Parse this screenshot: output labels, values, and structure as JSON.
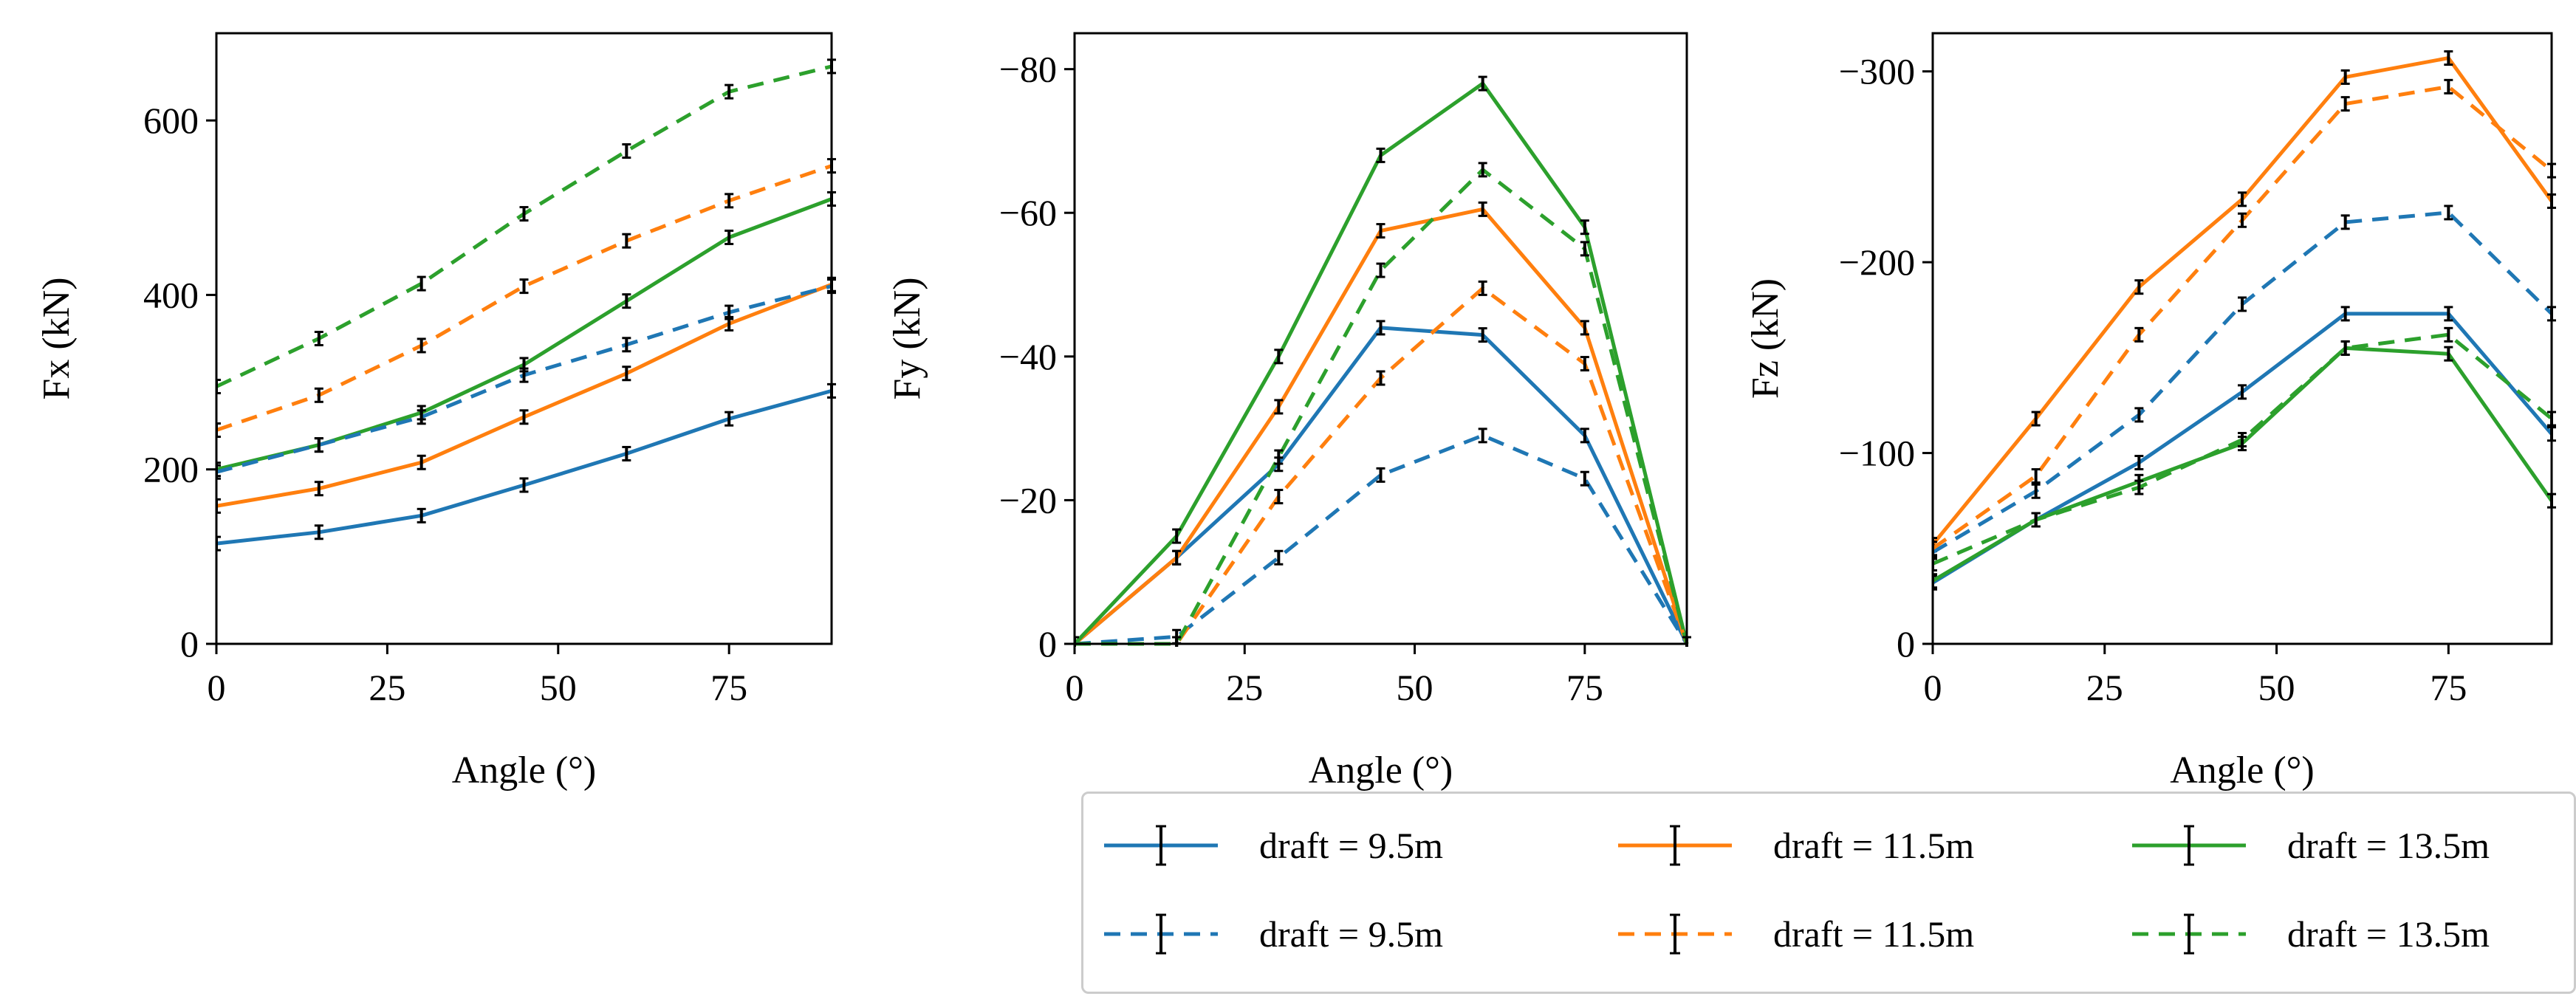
{
  "chart_data": [
    {
      "type": "line",
      "ylabel": "Fx (kN)",
      "xlabel": "Angle (°)",
      "xlim": [
        0,
        90
      ],
      "ylim": [
        0,
        700
      ],
      "xticks": [
        0,
        25,
        50,
        75
      ],
      "yticks": [
        0,
        200,
        400,
        600
      ],
      "inverted_y": false,
      "x": [
        0,
        15,
        30,
        45,
        60,
        75,
        90
      ],
      "series": [
        {
          "name": "draft = 9.5m",
          "style": "solid",
          "color": "#1f77b4",
          "values": [
            115,
            128,
            147,
            182,
            218,
            258,
            290
          ]
        },
        {
          "name": "draft = 11.5m",
          "style": "solid",
          "color": "#ff7f0e",
          "values": [
            158,
            178,
            208,
            260,
            310,
            367,
            412
          ]
        },
        {
          "name": "draft = 13.5m",
          "style": "solid",
          "color": "#2ca02c",
          "values": [
            200,
            228,
            265,
            320,
            393,
            466,
            510
          ]
        },
        {
          "name": "draft = 9.5m",
          "style": "dashed",
          "color": "#1f77b4",
          "values": [
            197,
            228,
            260,
            308,
            343,
            380,
            410
          ]
        },
        {
          "name": "draft = 11.5m",
          "style": "dashed",
          "color": "#ff7f0e",
          "values": [
            245,
            285,
            342,
            410,
            462,
            508,
            548
          ]
        },
        {
          "name": "draft = 13.5m",
          "style": "dashed",
          "color": "#2ca02c",
          "values": [
            295,
            350,
            413,
            493,
            565,
            633,
            662
          ]
        }
      ]
    },
    {
      "type": "line",
      "ylabel": "Fy (kN)",
      "xlabel": "Angle (°)",
      "xlim": [
        0,
        90
      ],
      "ylim": [
        0,
        -85
      ],
      "xticks": [
        0,
        25,
        50,
        75
      ],
      "yticks": [
        0,
        -20,
        -40,
        -60,
        -80
      ],
      "inverted_y": true,
      "x": [
        0,
        15,
        30,
        45,
        60,
        75,
        90
      ],
      "series": [
        {
          "name": "draft = 9.5m",
          "style": "solid",
          "color": "#1f77b4",
          "values": [
            0,
            -12,
            -25,
            -44,
            -43,
            -29,
            0
          ]
        },
        {
          "name": "draft = 11.5m",
          "style": "solid",
          "color": "#ff7f0e",
          "values": [
            0,
            -12,
            -33,
            -57.5,
            -60.5,
            -44,
            0
          ]
        },
        {
          "name": "draft = 13.5m",
          "style": "solid",
          "color": "#2ca02c",
          "values": [
            0,
            -15,
            -40,
            -68,
            -78,
            -58,
            0
          ]
        },
        {
          "name": "draft = 9.5m",
          "style": "dashed",
          "color": "#1f77b4",
          "values": [
            0,
            -1,
            -12,
            -23.5,
            -29,
            -23,
            0
          ]
        },
        {
          "name": "draft = 11.5m",
          "style": "dashed",
          "color": "#ff7f0e",
          "values": [
            0,
            0,
            -20.5,
            -37,
            -49.5,
            -39,
            0
          ]
        },
        {
          "name": "draft = 13.5m",
          "style": "dashed",
          "color": "#2ca02c",
          "values": [
            0,
            0,
            -26,
            -52,
            -66,
            -55,
            0
          ]
        }
      ]
    },
    {
      "type": "line",
      "ylabel": "Fz (kN)",
      "xlabel": "Angle (°)",
      "xlim": [
        0,
        90
      ],
      "ylim": [
        0,
        -320
      ],
      "xticks": [
        0,
        25,
        50,
        75
      ],
      "yticks": [
        0,
        -100,
        -200,
        -300
      ],
      "inverted_y": true,
      "x": [
        0,
        15,
        30,
        45,
        60,
        75,
        90
      ],
      "series": [
        {
          "name": "draft = 9.5m",
          "style": "solid",
          "color": "#1f77b4",
          "values": [
            -32,
            -65,
            -95,
            -132,
            -173,
            -173,
            -110
          ]
        },
        {
          "name": "draft = 11.5m",
          "style": "solid",
          "color": "#ff7f0e",
          "values": [
            -52,
            -118,
            -187,
            -233,
            -297,
            -307,
            -232
          ]
        },
        {
          "name": "draft = 13.5m",
          "style": "solid",
          "color": "#2ca02c",
          "values": [
            -33,
            -65,
            -85,
            -105,
            -155,
            -152,
            -75
          ]
        },
        {
          "name": "draft = 9.5m",
          "style": "dashed",
          "color": "#1f77b4",
          "values": [
            -48,
            -80,
            -120,
            -178,
            -221,
            -226,
            -173
          ]
        },
        {
          "name": "draft = 11.5m",
          "style": "dashed",
          "color": "#ff7f0e",
          "values": [
            -50,
            -88,
            -162,
            -222,
            -283,
            -292,
            -248
          ]
        },
        {
          "name": "draft = 13.5m",
          "style": "dashed",
          "color": "#2ca02c",
          "values": [
            -42,
            -65,
            -82,
            -107,
            -155,
            -162,
            -118
          ]
        }
      ]
    }
  ],
  "legend": {
    "placement": "below-right",
    "entries": [
      {
        "label": "draft = 9.5m",
        "style": "solid",
        "color": "#1f77b4"
      },
      {
        "label": "draft = 11.5m",
        "style": "solid",
        "color": "#ff7f0e"
      },
      {
        "label": "draft = 13.5m",
        "style": "solid",
        "color": "#2ca02c"
      },
      {
        "label": "draft = 9.5m",
        "style": "dashed",
        "color": "#1f77b4"
      },
      {
        "label": "draft = 11.5m",
        "style": "dashed",
        "color": "#ff7f0e"
      },
      {
        "label": "draft = 13.5m",
        "style": "dashed",
        "color": "#2ca02c"
      }
    ]
  }
}
